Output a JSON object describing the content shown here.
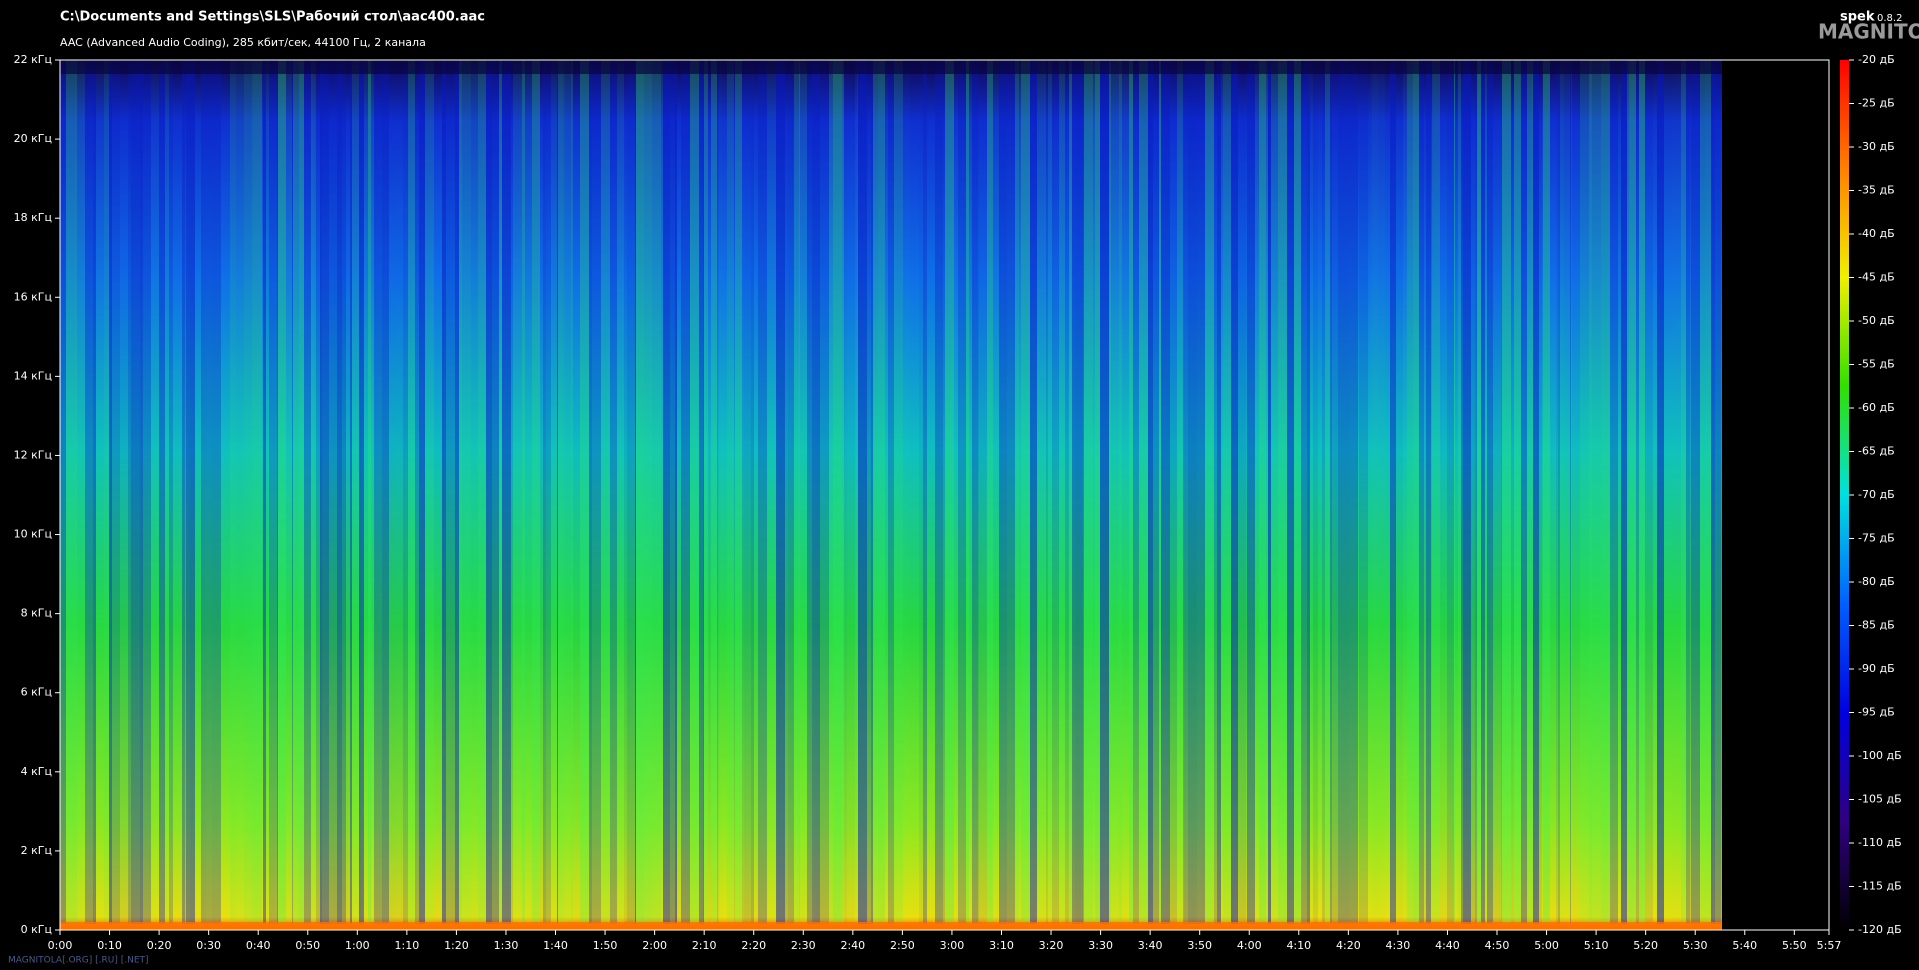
{
  "chart_data": {
    "type": "spectrogram",
    "title": "C:\\Documents and Settings\\SLS\\Рабочий стол\\aac400.aac",
    "subtitle": "AAC (Advanced Audio Coding), 285 кбит/сек, 44100 Гц, 2 канала",
    "app_name": "spek",
    "app_version": "0.8.2",
    "logo": "MAGNITOLA",
    "watermark": "MAGNITOLA[.ORG] [.RU] [.NET]",
    "xlim": [
      0,
      357
    ],
    "xticks": [
      {
        "value": 0,
        "label": "0:00"
      },
      {
        "value": 10,
        "label": "0:10"
      },
      {
        "value": 20,
        "label": "0:20"
      },
      {
        "value": 30,
        "label": "0:30"
      },
      {
        "value": 40,
        "label": "0:40"
      },
      {
        "value": 50,
        "label": "0:50"
      },
      {
        "value": 60,
        "label": "1:00"
      },
      {
        "value": 70,
        "label": "1:10"
      },
      {
        "value": 80,
        "label": "1:20"
      },
      {
        "value": 90,
        "label": "1:30"
      },
      {
        "value": 100,
        "label": "1:40"
      },
      {
        "value": 110,
        "label": "1:50"
      },
      {
        "value": 120,
        "label": "2:00"
      },
      {
        "value": 130,
        "label": "2:10"
      },
      {
        "value": 140,
        "label": "2:20"
      },
      {
        "value": 150,
        "label": "2:30"
      },
      {
        "value": 160,
        "label": "2:40"
      },
      {
        "value": 170,
        "label": "2:50"
      },
      {
        "value": 180,
        "label": "3:00"
      },
      {
        "value": 190,
        "label": "3:10"
      },
      {
        "value": 200,
        "label": "3:20"
      },
      {
        "value": 210,
        "label": "3:30"
      },
      {
        "value": 220,
        "label": "3:40"
      },
      {
        "value": 230,
        "label": "3:50"
      },
      {
        "value": 240,
        "label": "4:00"
      },
      {
        "value": 250,
        "label": "4:10"
      },
      {
        "value": 260,
        "label": "4:20"
      },
      {
        "value": 270,
        "label": "4:30"
      },
      {
        "value": 280,
        "label": "4:40"
      },
      {
        "value": 290,
        "label": "4:50"
      },
      {
        "value": 300,
        "label": "5:00"
      },
      {
        "value": 310,
        "label": "5:10"
      },
      {
        "value": 320,
        "label": "5:20"
      },
      {
        "value": 330,
        "label": "5:30"
      },
      {
        "value": 340,
        "label": "5:40"
      },
      {
        "value": 350,
        "label": "5:50"
      },
      {
        "value": 357,
        "label": "5:57"
      }
    ],
    "ylim": [
      0,
      22
    ],
    "yticks": [
      {
        "value": 0,
        "label": "0 кГц"
      },
      {
        "value": 2,
        "label": "2 кГц"
      },
      {
        "value": 4,
        "label": "4 кГц"
      },
      {
        "value": 6,
        "label": "6 кГц"
      },
      {
        "value": 8,
        "label": "8 кГц"
      },
      {
        "value": 10,
        "label": "10 кГц"
      },
      {
        "value": 12,
        "label": "12 кГц"
      },
      {
        "value": 14,
        "label": "14 кГц"
      },
      {
        "value": 16,
        "label": "16 кГц"
      },
      {
        "value": 18,
        "label": "18 кГц"
      },
      {
        "value": 20,
        "label": "20 кГц"
      },
      {
        "value": 22,
        "label": "22 кГц"
      }
    ],
    "zlim": [
      -120,
      -20
    ],
    "zticks": [
      {
        "value": -20,
        "label": "-20 дБ"
      },
      {
        "value": -25,
        "label": "-25 дБ"
      },
      {
        "value": -30,
        "label": "-30 дБ"
      },
      {
        "value": -35,
        "label": "-35 дБ"
      },
      {
        "value": -40,
        "label": "-40 дБ"
      },
      {
        "value": -45,
        "label": "-45 дБ"
      },
      {
        "value": -50,
        "label": "-50 дБ"
      },
      {
        "value": -55,
        "label": "-55 дБ"
      },
      {
        "value": -60,
        "label": "-60 дБ"
      },
      {
        "value": -65,
        "label": "-65 дБ"
      },
      {
        "value": -70,
        "label": "-70 дБ"
      },
      {
        "value": -75,
        "label": "-75 дБ"
      },
      {
        "value": -80,
        "label": "-80 дБ"
      },
      {
        "value": -85,
        "label": "-85 дБ"
      },
      {
        "value": -90,
        "label": "-90 дБ"
      },
      {
        "value": -95,
        "label": "-95 дБ"
      },
      {
        "value": -100,
        "label": "-100 дБ"
      },
      {
        "value": -105,
        "label": "-105 дБ"
      },
      {
        "value": -110,
        "label": "-110 дБ"
      },
      {
        "value": -115,
        "label": "-115 дБ"
      },
      {
        "value": -120,
        "label": "-120 дБ"
      }
    ],
    "colormap": [
      "#ff0000",
      "#ff8000",
      "#f0f000",
      "#30e000",
      "#00e0e0",
      "#0060ff",
      "#0000e0",
      "#300080",
      "#000000"
    ]
  }
}
